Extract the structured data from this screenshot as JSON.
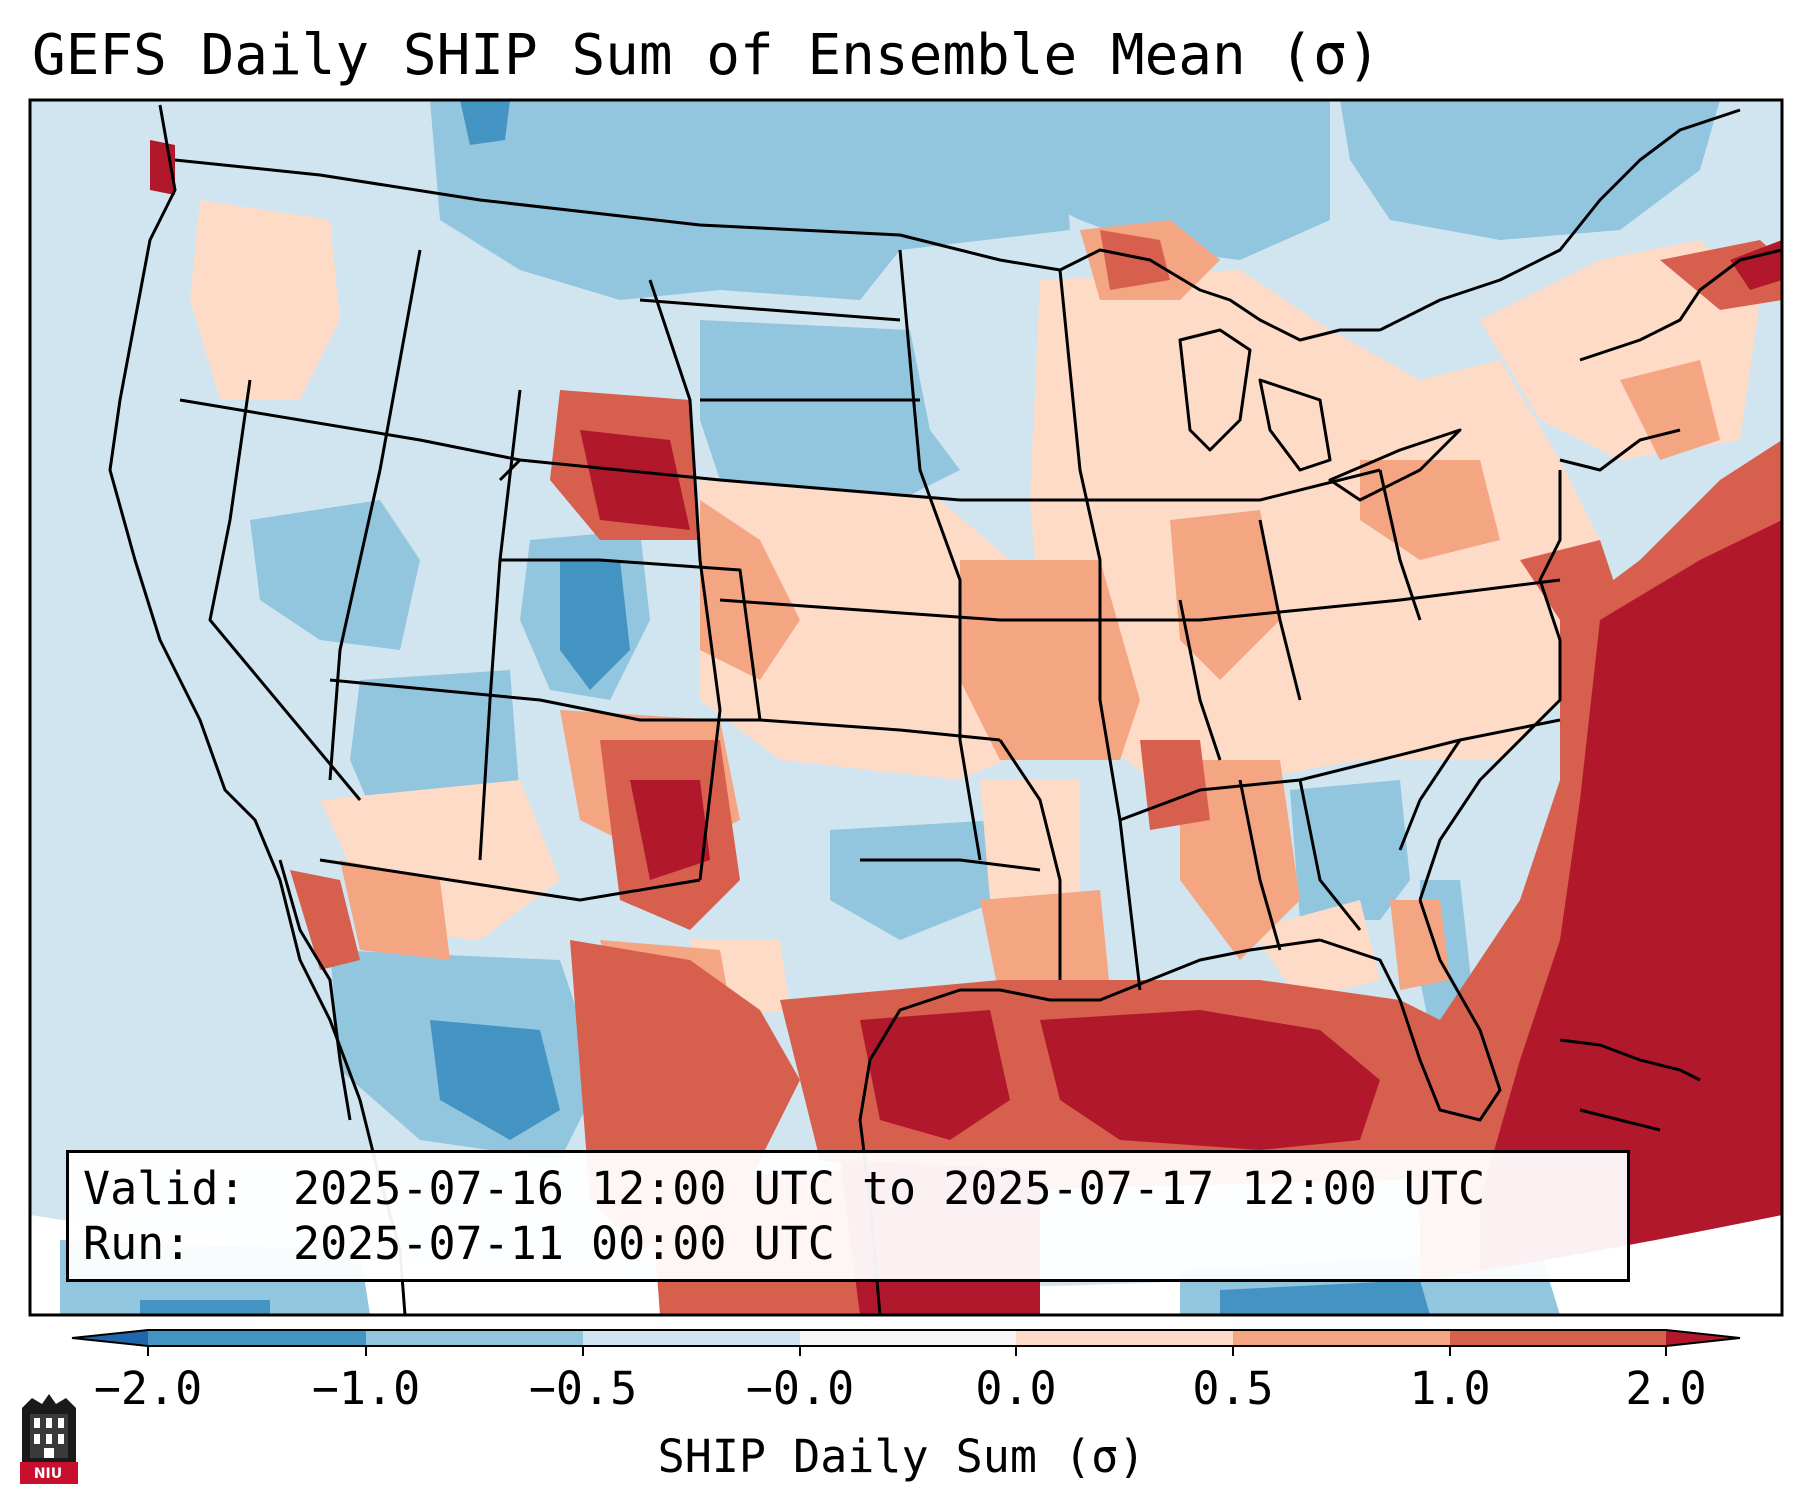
{
  "title": "GEFS Daily SHIP Sum of Ensemble Mean (σ)",
  "valid_label": "Valid:",
  "valid_value": "2025-07-16 12:00 UTC to 2025-07-17 12:00 UTC",
  "run_label": "Run:",
  "run_value": "2025-07-11 00:00 UTC",
  "colorbar": {
    "label": "SHIP Daily Sum (σ)",
    "ticks": [
      "−2.0",
      "−1.0",
      "−0.5",
      "−0.0",
      "0.0",
      "0.5",
      "1.0",
      "2.0"
    ],
    "bins": [
      {
        "range": "<-2.0",
        "color": "#2166ac"
      },
      {
        "range": "-2.0 to -1.0",
        "color": "#4393c3"
      },
      {
        "range": "-1.0 to -0.5",
        "color": "#92c5de"
      },
      {
        "range": "-0.5 to -0.0",
        "color": "#d1e5f0"
      },
      {
        "range": "-0.0 to 0.0",
        "color": "#f7f7f7"
      },
      {
        "range": "0.0 to 0.5",
        "color": "#fddbc7"
      },
      {
        "range": "0.5 to 1.0",
        "color": "#f4a582"
      },
      {
        "range": "1.0 to 2.0",
        "color": "#d6604d"
      },
      {
        "range": ">2.0",
        "color": "#b2182b"
      }
    ]
  },
  "logo_text": "NIU",
  "colors": {
    "ocean_background": "#d1e5f0",
    "strong_positive": "#b2182b",
    "positive": "#d6604d",
    "moderate_positive": "#f4a582",
    "weak_positive": "#fddbc7",
    "weak_negative": "#d1e5f0",
    "moderate_negative": "#92c5de",
    "negative": "#4393c3",
    "logo": "#c8102e"
  }
}
